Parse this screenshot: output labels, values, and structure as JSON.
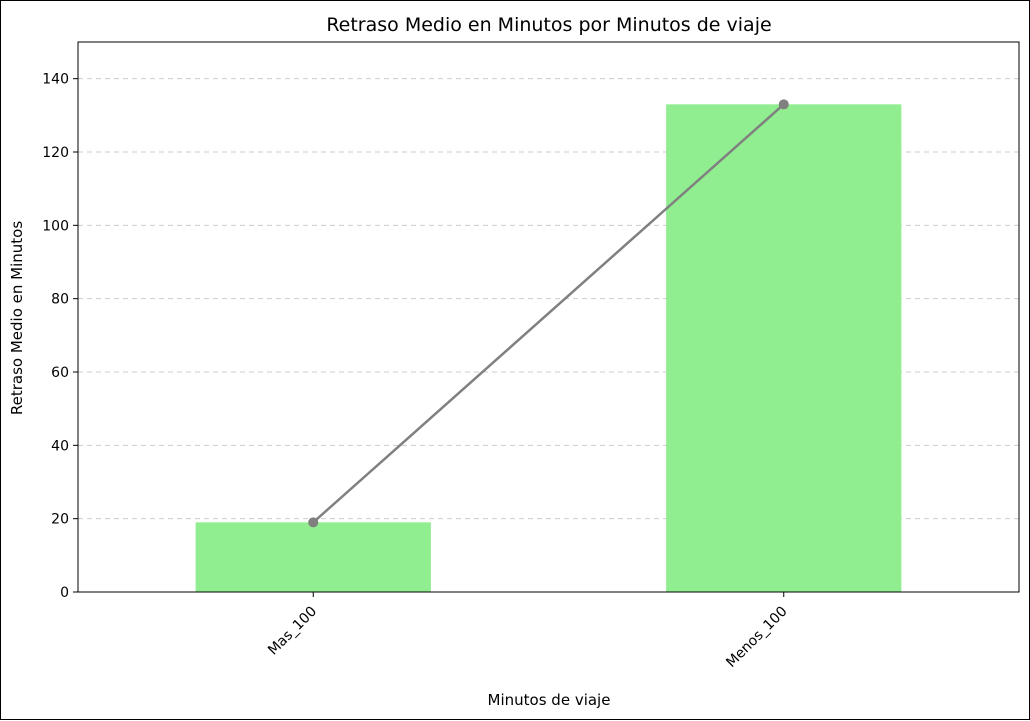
{
  "chart_data": {
    "type": "bar",
    "title": "Retraso Medio en Minutos por Minutos de viaje",
    "xlabel": "Minutos de viaje",
    "ylabel": "Retraso Medio en Minutos",
    "categories": [
      "Mas_100",
      "Menos_100"
    ],
    "values": [
      19,
      133
    ],
    "line_overlay": {
      "values": [
        19,
        133
      ],
      "marker": "circle"
    },
    "ylim": [
      0,
      150
    ],
    "yticks": [
      0,
      20,
      40,
      60,
      80,
      100,
      120,
      140
    ],
    "grid": "y-dashed",
    "colors": {
      "bar": "#90ee90",
      "line": "#808080",
      "grid": "#cccccc",
      "axis": "#000000"
    }
  }
}
